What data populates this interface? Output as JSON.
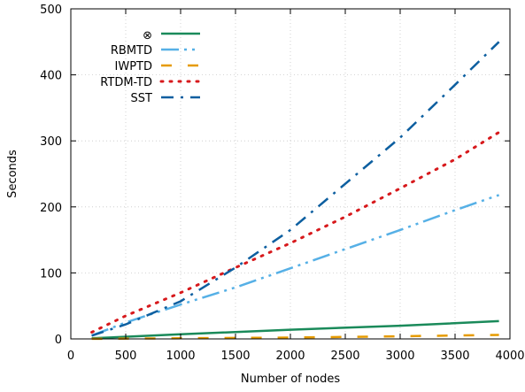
{
  "chart_data": {
    "type": "line",
    "xlabel": "Number of nodes",
    "ylabel": "Seconds",
    "xlim": [
      0,
      4000
    ],
    "ylim": [
      0,
      500
    ],
    "xticks": [
      0,
      500,
      1000,
      1500,
      2000,
      2500,
      3000,
      3500,
      4000
    ],
    "yticks": [
      0,
      100,
      200,
      300,
      400,
      500
    ],
    "grid": true,
    "legend_position": "top-left",
    "series": [
      {
        "name": "⊗",
        "color": "#1a8a5a",
        "dash": "solid",
        "x": [
          190,
          1000,
          2000,
          3000,
          3900
        ],
        "y": [
          1,
          7,
          14,
          20,
          27
        ]
      },
      {
        "name": "RBMTD",
        "color": "#56b0e6",
        "dash": "dash-dot-dot",
        "x": [
          190,
          500,
          1000,
          1500,
          2000,
          2500,
          3000,
          3500,
          3900
        ],
        "y": [
          5,
          25,
          52,
          78,
          107,
          136,
          165,
          195,
          218
        ]
      },
      {
        "name": "IWPTD",
        "color": "#e69b00",
        "dash": "dashed",
        "x": [
          190,
          1000,
          2000,
          3000,
          3900
        ],
        "y": [
          0.2,
          1,
          2,
          4,
          6
        ]
      },
      {
        "name": "RTDM-TD",
        "color": "#d7191c",
        "dash": "dotted",
        "x": [
          190,
          500,
          1000,
          1500,
          2000,
          2500,
          3000,
          3500,
          3900
        ],
        "y": [
          10,
          35,
          70,
          108,
          145,
          185,
          228,
          272,
          313
        ]
      },
      {
        "name": "SST",
        "color": "#0d5fa0",
        "dash": "dash-dot",
        "x": [
          190,
          500,
          1000,
          1500,
          2000,
          2500,
          3000,
          3500,
          3900
        ],
        "y": [
          5,
          22,
          57,
          108,
          165,
          235,
          305,
          385,
          450
        ]
      }
    ]
  }
}
